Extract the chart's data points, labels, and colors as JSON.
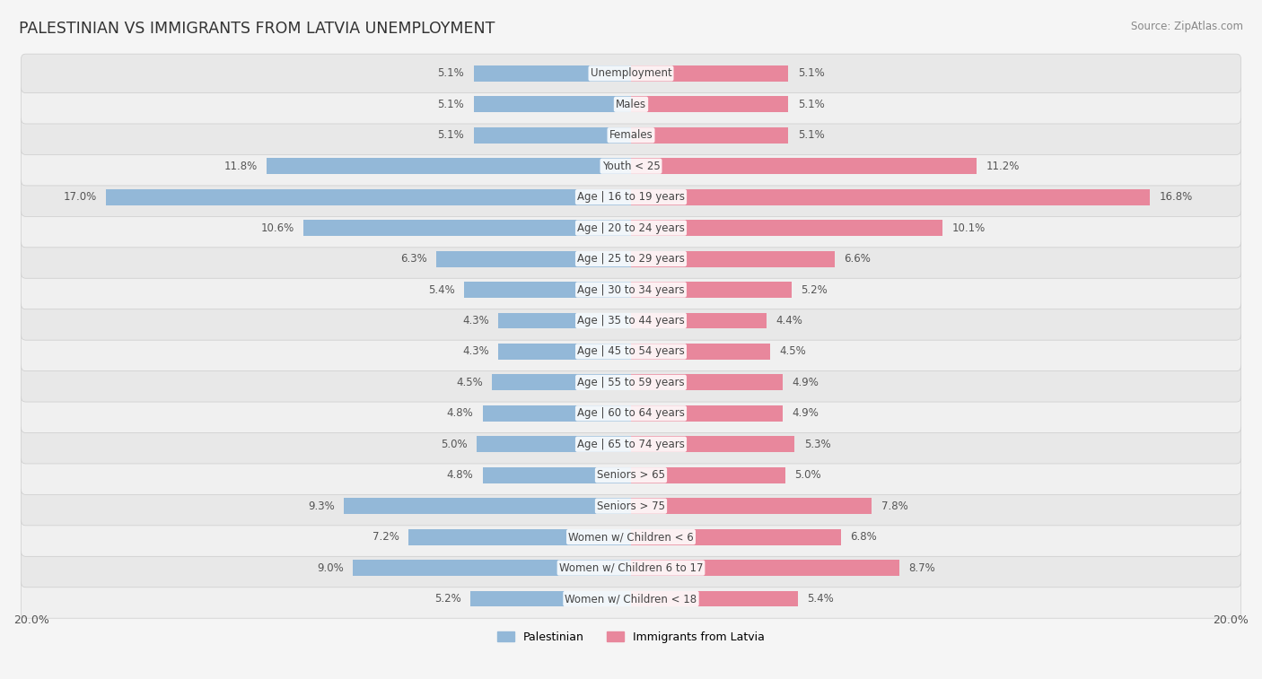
{
  "title": "PALESTINIAN VS IMMIGRANTS FROM LATVIA UNEMPLOYMENT",
  "source": "Source: ZipAtlas.com",
  "categories": [
    "Unemployment",
    "Males",
    "Females",
    "Youth < 25",
    "Age | 16 to 19 years",
    "Age | 20 to 24 years",
    "Age | 25 to 29 years",
    "Age | 30 to 34 years",
    "Age | 35 to 44 years",
    "Age | 45 to 54 years",
    "Age | 55 to 59 years",
    "Age | 60 to 64 years",
    "Age | 65 to 74 years",
    "Seniors > 65",
    "Seniors > 75",
    "Women w/ Children < 6",
    "Women w/ Children 6 to 17",
    "Women w/ Children < 18"
  ],
  "palestinian": [
    5.1,
    5.1,
    5.1,
    11.8,
    17.0,
    10.6,
    6.3,
    5.4,
    4.3,
    4.3,
    4.5,
    4.8,
    5.0,
    4.8,
    9.3,
    7.2,
    9.0,
    5.2
  ],
  "latvia": [
    5.1,
    5.1,
    5.1,
    11.2,
    16.8,
    10.1,
    6.6,
    5.2,
    4.4,
    4.5,
    4.9,
    4.9,
    5.3,
    5.0,
    7.8,
    6.8,
    8.7,
    5.4
  ],
  "max_val": 20.0,
  "palestinian_color": "#93b8d8",
  "latvia_color": "#e8879c",
  "bar_height": 0.52,
  "label_color": "#555555",
  "axis_label_color": "#555555",
  "bg_color": "#f5f5f5",
  "row_light": "#f0f0f0",
  "row_dark": "#e8e8e8"
}
